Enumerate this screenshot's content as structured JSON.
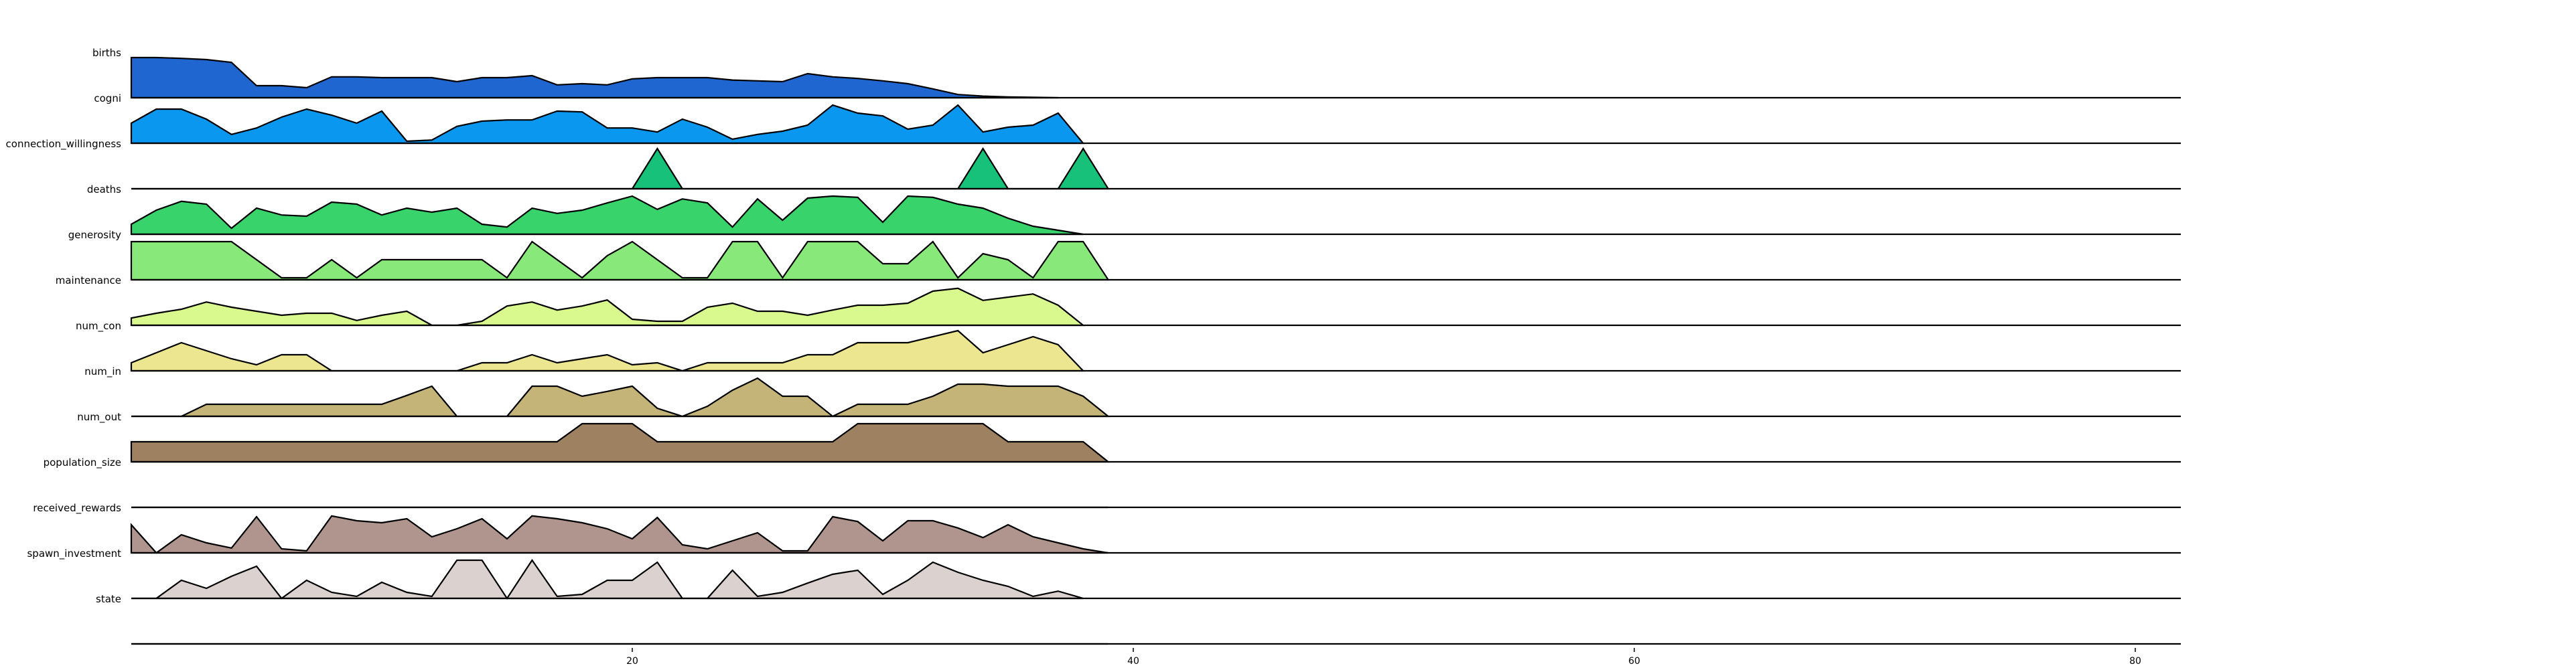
{
  "chart_data": {
    "type": "area",
    "title": "",
    "xlabel": "",
    "ylabel": "",
    "xlim": [
      0,
      83
    ],
    "xticks": [
      20,
      40,
      60,
      80
    ],
    "series": [
      {
        "name": "births",
        "color": "#1f66d0",
        "values": [
          1.0,
          1.0,
          0.98,
          0.95,
          0.88,
          0.3,
          0.3,
          0.25,
          0.52,
          0.52,
          0.5,
          0.5,
          0.5,
          0.4,
          0.5,
          0.5,
          0.55,
          0.32,
          0.35,
          0.32,
          0.47,
          0.5,
          0.5,
          0.5,
          0.44,
          0.42,
          0.4,
          0.6,
          0.52,
          0.48,
          0.42,
          0.35,
          0.22,
          0.08,
          0.04,
          0.02,
          0.01,
          0.0
        ]
      },
      {
        "name": "cogni",
        "color": "#0a97f0",
        "values": [
          0.5,
          0.85,
          0.85,
          0.6,
          0.22,
          0.38,
          0.65,
          0.85,
          0.7,
          0.5,
          0.8,
          0.05,
          0.08,
          0.42,
          0.55,
          0.58,
          0.58,
          0.8,
          0.78,
          0.38,
          0.38,
          0.28,
          0.6,
          0.4,
          0.1,
          0.22,
          0.3,
          0.45,
          0.95,
          0.75,
          0.68,
          0.35,
          0.45,
          0.95,
          0.28,
          0.4,
          0.45,
          0.75,
          0.0
        ]
      },
      {
        "name": "connection_willingness",
        "color": "#18c17a",
        "values": [
          0,
          0,
          0,
          0,
          0,
          0,
          0,
          0,
          0,
          0,
          0,
          0,
          0,
          0,
          0,
          0,
          0,
          0,
          0,
          0,
          0,
          1,
          0,
          0,
          0,
          0,
          0,
          0,
          0,
          0,
          0,
          0,
          0,
          0,
          1,
          0,
          0,
          0,
          1,
          0
        ]
      },
      {
        "name": "deaths",
        "color": "#38d46b",
        "values": [
          0.25,
          0.6,
          0.82,
          0.75,
          0.15,
          0.65,
          0.48,
          0.45,
          0.8,
          0.75,
          0.48,
          0.65,
          0.55,
          0.65,
          0.25,
          0.18,
          0.65,
          0.52,
          0.6,
          0.78,
          0.95,
          0.62,
          0.88,
          0.78,
          0.18,
          0.88,
          0.35,
          0.9,
          0.95,
          0.92,
          0.3,
          0.95,
          0.92,
          0.75,
          0.65,
          0.4,
          0.2,
          0.1,
          0.0
        ]
      },
      {
        "name": "generosity",
        "color": "#88e87a",
        "values": [
          0.95,
          0.95,
          0.95,
          0.95,
          0.95,
          0.5,
          0.05,
          0.05,
          0.5,
          0.05,
          0.5,
          0.5,
          0.5,
          0.5,
          0.5,
          0.05,
          0.95,
          0.5,
          0.05,
          0.6,
          0.95,
          0.5,
          0.05,
          0.05,
          0.95,
          0.95,
          0.05,
          0.95,
          0.95,
          0.95,
          0.4,
          0.4,
          0.95,
          0.05,
          0.65,
          0.5,
          0.05,
          0.95,
          0.95,
          0.0
        ]
      },
      {
        "name": "maintenance",
        "color": "#d9f88e",
        "values": [
          0.18,
          0.3,
          0.4,
          0.58,
          0.45,
          0.35,
          0.25,
          0.3,
          0.3,
          0.12,
          0.25,
          0.35,
          0.0,
          0.0,
          0.1,
          0.48,
          0.58,
          0.38,
          0.48,
          0.63,
          0.15,
          0.1,
          0.1,
          0.45,
          0.55,
          0.35,
          0.35,
          0.25,
          0.38,
          0.5,
          0.5,
          0.55,
          0.85,
          0.92,
          0.62,
          0.7,
          0.78,
          0.5,
          0.0
        ]
      },
      {
        "name": "num_con",
        "color": "#ebe68f",
        "values": [
          0.2,
          0.45,
          0.7,
          0.5,
          0.3,
          0.15,
          0.4,
          0.4,
          0.0,
          0.0,
          0.0,
          0.0,
          0.0,
          0.0,
          0.2,
          0.2,
          0.4,
          0.2,
          0.3,
          0.4,
          0.15,
          0.2,
          0.0,
          0.2,
          0.2,
          0.2,
          0.2,
          0.4,
          0.4,
          0.7,
          0.7,
          0.7,
          0.85,
          1.0,
          0.45,
          0.65,
          0.85,
          0.65,
          0.0
        ]
      },
      {
        "name": "num_in",
        "color": "#c4b477",
        "values": [
          0.0,
          0.0,
          0.0,
          0.3,
          0.3,
          0.3,
          0.3,
          0.3,
          0.3,
          0.3,
          0.3,
          0.52,
          0.75,
          0.0,
          0.0,
          0.0,
          0.75,
          0.75,
          0.5,
          0.62,
          0.75,
          0.2,
          0.0,
          0.25,
          0.65,
          0.95,
          0.5,
          0.5,
          0.0,
          0.3,
          0.3,
          0.3,
          0.5,
          0.8,
          0.8,
          0.75,
          0.75,
          0.75,
          0.5,
          0.0
        ]
      },
      {
        "name": "num_out",
        "color": "#9e8161",
        "values": [
          0.5,
          0.5,
          0.5,
          0.5,
          0.5,
          0.5,
          0.5,
          0.5,
          0.5,
          0.5,
          0.5,
          0.5,
          0.5,
          0.5,
          0.5,
          0.5,
          0.5,
          0.5,
          0.95,
          0.95,
          0.95,
          0.5,
          0.5,
          0.5,
          0.5,
          0.5,
          0.5,
          0.5,
          0.5,
          0.95,
          0.95,
          0.95,
          0.95,
          0.95,
          0.95,
          0.5,
          0.5,
          0.5,
          0.5,
          0.0
        ]
      },
      {
        "name": "population_size",
        "color": "#b0938a",
        "values": [
          0,
          0,
          0,
          0,
          0,
          0,
          0,
          0,
          0,
          0,
          0,
          0,
          0,
          0,
          0,
          0,
          0,
          0,
          0,
          0,
          0,
          0,
          0,
          0,
          0,
          0,
          0,
          0,
          0,
          0,
          0,
          0,
          0,
          0,
          0,
          0,
          0,
          0,
          0,
          0
        ]
      },
      {
        "name": "received_rewards",
        "color": "#b0958f",
        "values": [
          0.7,
          0.0,
          0.45,
          0.25,
          0.12,
          0.9,
          0.1,
          0.05,
          0.92,
          0.8,
          0.75,
          0.85,
          0.4,
          0.6,
          0.85,
          0.35,
          0.92,
          0.85,
          0.75,
          0.6,
          0.35,
          0.88,
          0.2,
          0.1,
          0.3,
          0.5,
          0.05,
          0.05,
          0.9,
          0.78,
          0.3,
          0.8,
          0.8,
          0.62,
          0.38,
          0.7,
          0.4,
          0.25,
          0.1,
          0.0
        ]
      },
      {
        "name": "spawn_investment",
        "color": "#dbd1cf",
        "values": [
          0.0,
          0.0,
          0.45,
          0.25,
          0.55,
          0.8,
          0.0,
          0.45,
          0.15,
          0.05,
          0.4,
          0.15,
          0.05,
          0.95,
          0.95,
          0.0,
          0.95,
          0.05,
          0.1,
          0.45,
          0.45,
          0.9,
          0.0,
          0.0,
          0.7,
          0.05,
          0.15,
          0.38,
          0.6,
          0.7,
          0.1,
          0.45,
          0.9,
          0.65,
          0.45,
          0.3,
          0.05,
          0.18,
          0.0
        ]
      },
      {
        "name": "state",
        "color": "#dbd1cf",
        "values": [
          0,
          0,
          0,
          0,
          0,
          0,
          0,
          0,
          0,
          0,
          0,
          0,
          0,
          0,
          0,
          0,
          0,
          0,
          0,
          0,
          0,
          0,
          0,
          0,
          0,
          0,
          0,
          0,
          0,
          0,
          0,
          0,
          0,
          0,
          0,
          0,
          0,
          0,
          0,
          0
        ]
      }
    ],
    "grid": false,
    "legend": "none"
  }
}
